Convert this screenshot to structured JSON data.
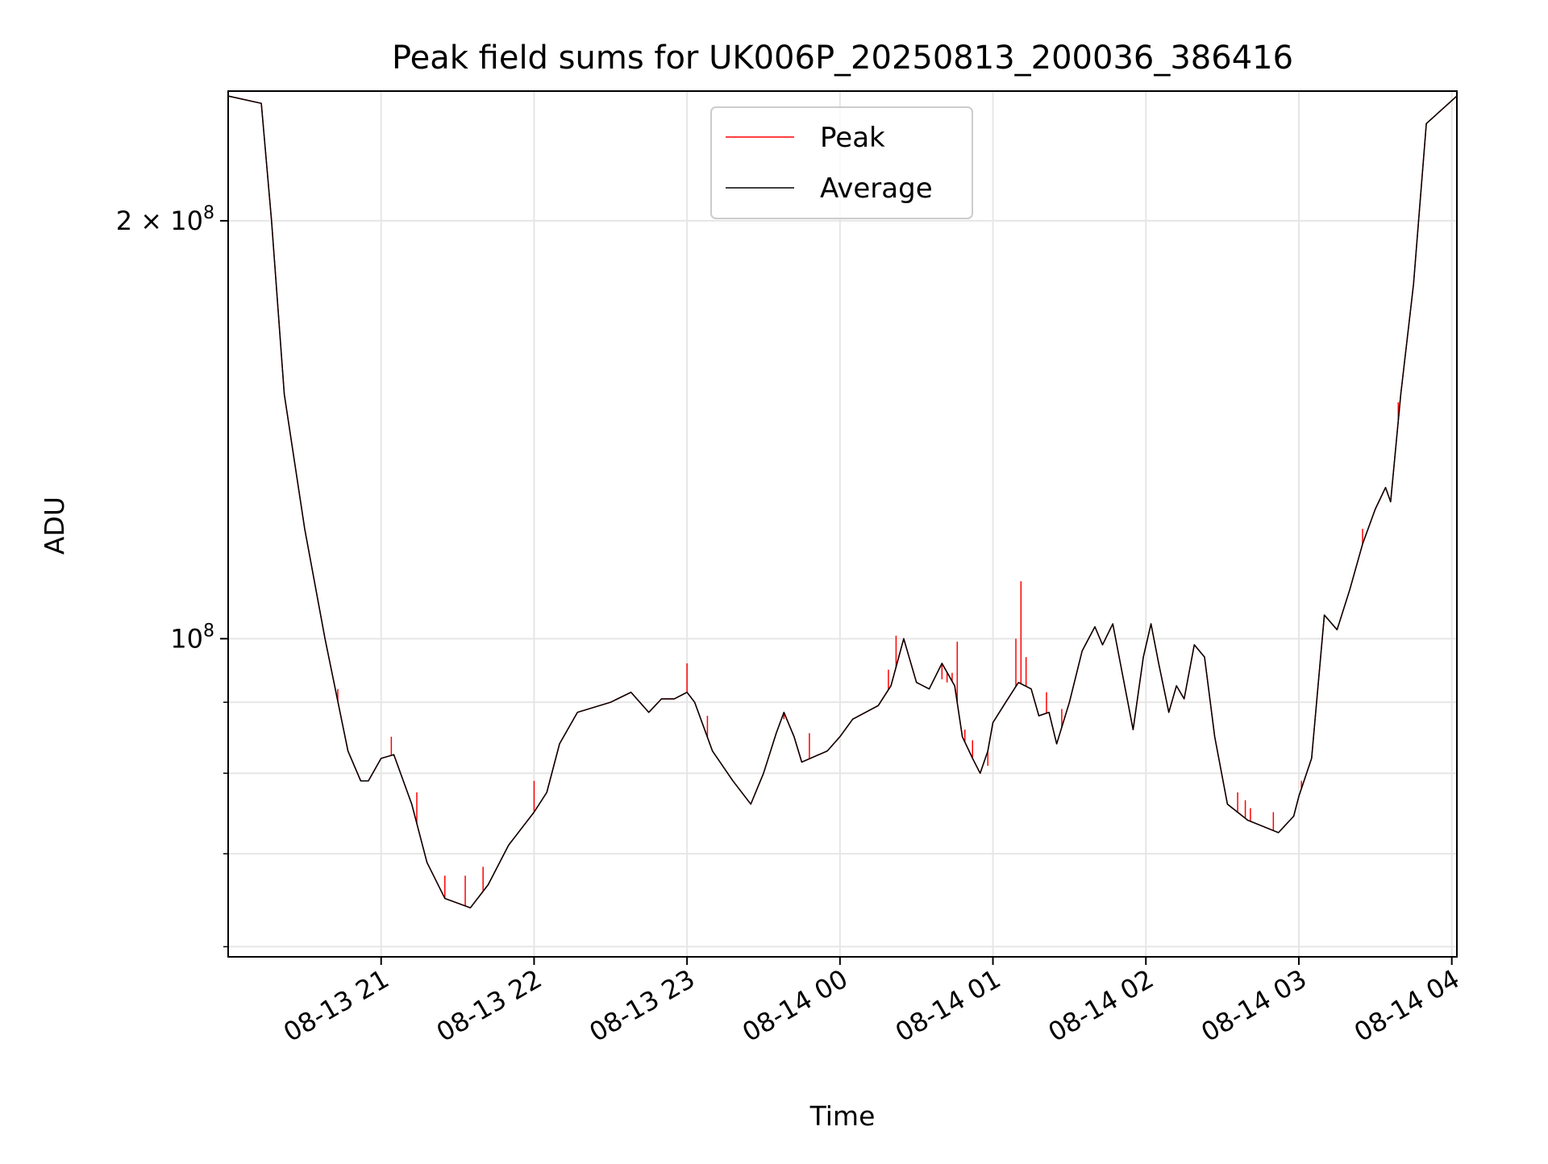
{
  "chart_data": {
    "type": "line",
    "title": "Peak field sums for UK006P_20250813_200036_386416",
    "xlabel": "Time",
    "ylabel": "ADU",
    "x_axis": {
      "kind": "datetime",
      "range": [
        "2025-08-13 20:00",
        "2025-08-14 04:02"
      ],
      "ticks": [
        {
          "value": "2025-08-13 21:00",
          "label": "08-13 21"
        },
        {
          "value": "2025-08-13 22:00",
          "label": "08-13 22"
        },
        {
          "value": "2025-08-13 23:00",
          "label": "08-13 23"
        },
        {
          "value": "2025-08-14 00:00",
          "label": "08-14 00"
        },
        {
          "value": "2025-08-14 01:00",
          "label": "08-14 01"
        },
        {
          "value": "2025-08-14 02:00",
          "label": "08-14 02"
        },
        {
          "value": "2025-08-14 03:00",
          "label": "08-14 03"
        },
        {
          "value": "2025-08-14 04:00",
          "label": "08-14 04"
        }
      ]
    },
    "y_axis": {
      "scale": "log",
      "range": [
        59000000,
        248000000
      ],
      "major_ticks": [
        {
          "value": 100000000,
          "label_base": "10",
          "label_exp": "8"
        },
        {
          "value": 200000000,
          "label_base": "2 × 10",
          "label_exp": "8"
        }
      ],
      "minor_ticks": [
        60000000,
        70000000,
        80000000,
        90000000
      ]
    },
    "grid": true,
    "legend": {
      "placement": "top-center"
    },
    "series": [
      {
        "name": "Peak",
        "color": "#ff0000",
        "points": [
          [
            "2025-08-13 20:00",
            246000000
          ],
          [
            "2025-08-13 20:13",
            243000000
          ],
          [
            "2025-08-13 20:17",
            200000000
          ],
          [
            "2025-08-13 20:22",
            150000000
          ],
          [
            "2025-08-13 20:30",
            120000000
          ],
          [
            "2025-08-13 20:38",
            100000000
          ],
          [
            "2025-08-13 20:47",
            83000000
          ],
          [
            "2025-08-13 20:52",
            79000000
          ],
          [
            "2025-08-13 20:55",
            79000000
          ],
          [
            "2025-08-13 21:00",
            82000000
          ],
          [
            "2025-08-13 21:05",
            82500000
          ],
          [
            "2025-08-13 21:12",
            76000000
          ],
          [
            "2025-08-13 21:18",
            69000000
          ],
          [
            "2025-08-13 21:25",
            65000000
          ],
          [
            "2025-08-13 21:35",
            64000000
          ],
          [
            "2025-08-13 21:42",
            66500000
          ],
          [
            "2025-08-13 21:50",
            71000000
          ],
          [
            "2025-08-13 22:00",
            75000000
          ],
          [
            "2025-08-13 22:05",
            77500000
          ],
          [
            "2025-08-13 22:10",
            84000000
          ],
          [
            "2025-08-13 22:17",
            88500000
          ],
          [
            "2025-08-13 22:30",
            90000000
          ],
          [
            "2025-08-13 22:38",
            91500000
          ],
          [
            "2025-08-13 22:45",
            88500000
          ],
          [
            "2025-08-13 22:50",
            90500000
          ],
          [
            "2025-08-13 22:55",
            90500000
          ],
          [
            "2025-08-13 23:00",
            91500000
          ],
          [
            "2025-08-13 23:03",
            90000000
          ],
          [
            "2025-08-13 23:10",
            83000000
          ],
          [
            "2025-08-13 23:18",
            79000000
          ],
          [
            "2025-08-13 23:25",
            76000000
          ],
          [
            "2025-08-13 23:30",
            80000000
          ],
          [
            "2025-08-13 23:35",
            85500000
          ],
          [
            "2025-08-13 23:38",
            88500000
          ],
          [
            "2025-08-13 23:42",
            85000000
          ],
          [
            "2025-08-13 23:45",
            81500000
          ],
          [
            "2025-08-13 23:55",
            83000000
          ],
          [
            "2025-08-14 00:00",
            85000000
          ],
          [
            "2025-08-14 00:05",
            87500000
          ],
          [
            "2025-08-14 00:15",
            89500000
          ],
          [
            "2025-08-14 00:20",
            92500000
          ],
          [
            "2025-08-14 00:25",
            100000000
          ],
          [
            "2025-08-14 00:30",
            93000000
          ],
          [
            "2025-08-14 00:35",
            92000000
          ],
          [
            "2025-08-14 00:40",
            96000000
          ],
          [
            "2025-08-14 00:45",
            92500000
          ],
          [
            "2025-08-14 00:48",
            85000000
          ],
          [
            "2025-08-14 00:52",
            82000000
          ],
          [
            "2025-08-14 00:55",
            80000000
          ],
          [
            "2025-08-14 00:58",
            83000000
          ],
          [
            "2025-08-14 01:00",
            87000000
          ],
          [
            "2025-08-14 01:05",
            90000000
          ],
          [
            "2025-08-14 01:10",
            93000000
          ],
          [
            "2025-08-14 01:15",
            92000000
          ],
          [
            "2025-08-14 01:18",
            88000000
          ],
          [
            "2025-08-14 01:22",
            88500000
          ],
          [
            "2025-08-14 01:25",
            84000000
          ],
          [
            "2025-08-14 01:30",
            90000000
          ],
          [
            "2025-08-14 01:35",
            98000000
          ],
          [
            "2025-08-14 01:40",
            102000000
          ],
          [
            "2025-08-14 01:43",
            99000000
          ],
          [
            "2025-08-14 01:47",
            102500000
          ],
          [
            "2025-08-14 01:50",
            96000000
          ],
          [
            "2025-08-14 01:55",
            86000000
          ],
          [
            "2025-08-14 01:59",
            97000000
          ],
          [
            "2025-08-14 02:02",
            102500000
          ],
          [
            "2025-08-14 02:05",
            96000000
          ],
          [
            "2025-08-14 02:09",
            88500000
          ],
          [
            "2025-08-14 02:12",
            92500000
          ],
          [
            "2025-08-14 02:15",
            90500000
          ],
          [
            "2025-08-14 02:19",
            99000000
          ],
          [
            "2025-08-14 02:23",
            97000000
          ],
          [
            "2025-08-14 02:27",
            85000000
          ],
          [
            "2025-08-14 02:32",
            76000000
          ],
          [
            "2025-08-14 02:40",
            74000000
          ],
          [
            "2025-08-14 02:52",
            72500000
          ],
          [
            "2025-08-14 02:58",
            74500000
          ],
          [
            "2025-08-14 03:00",
            77000000
          ],
          [
            "2025-08-14 03:05",
            82000000
          ],
          [
            "2025-08-14 03:10",
            104000000
          ],
          [
            "2025-08-14 03:15",
            101500000
          ],
          [
            "2025-08-14 03:20",
            108500000
          ],
          [
            "2025-08-14 03:25",
            117000000
          ],
          [
            "2025-08-14 03:30",
            124000000
          ],
          [
            "2025-08-14 03:34",
            128500000
          ],
          [
            "2025-08-14 03:36",
            125500000
          ],
          [
            "2025-08-14 03:40",
            150000000
          ],
          [
            "2025-08-14 03:45",
            180000000
          ],
          [
            "2025-08-14 03:50",
            235000000
          ],
          [
            "2025-08-14 04:02",
            246000000
          ]
        ],
        "spikes": [
          [
            "2025-08-13 20:43",
            92000000
          ],
          [
            "2025-08-13 21:04",
            85000000
          ],
          [
            "2025-08-13 21:14",
            77500000
          ],
          [
            "2025-08-13 21:25",
            67500000
          ],
          [
            "2025-08-13 21:33",
            67500000
          ],
          [
            "2025-08-13 21:40",
            68500000
          ],
          [
            "2025-08-13 22:00",
            79000000
          ],
          [
            "2025-08-13 23:00",
            96000000
          ],
          [
            "2025-08-13 23:08",
            88000000
          ],
          [
            "2025-08-13 23:38",
            87500000
          ],
          [
            "2025-08-13 23:48",
            85500000
          ],
          [
            "2025-08-14 00:19",
            95000000
          ],
          [
            "2025-08-14 00:22",
            100500000
          ],
          [
            "2025-08-14 00:40",
            93500000
          ],
          [
            "2025-08-14 00:42",
            93000000
          ],
          [
            "2025-08-14 00:44",
            94500000
          ],
          [
            "2025-08-14 00:46",
            99500000
          ],
          [
            "2025-08-14 00:49",
            86000000
          ],
          [
            "2025-08-14 00:52",
            84500000
          ],
          [
            "2025-08-14 00:58",
            81000000
          ],
          [
            "2025-08-14 01:09",
            100000000
          ],
          [
            "2025-08-14 01:11",
            110000000
          ],
          [
            "2025-08-14 01:13",
            97000000
          ],
          [
            "2025-08-14 01:21",
            91500000
          ],
          [
            "2025-08-14 01:27",
            89000000
          ],
          [
            "2025-08-14 02:36",
            77500000
          ],
          [
            "2025-08-14 02:39",
            76500000
          ],
          [
            "2025-08-14 02:41",
            75500000
          ],
          [
            "2025-08-14 02:50",
            75000000
          ],
          [
            "2025-08-14 03:01",
            79000000
          ],
          [
            "2025-08-14 03:25",
            120000000
          ],
          [
            "2025-08-14 03:39",
            148000000
          ]
        ]
      },
      {
        "name": "Average",
        "color": "#000000",
        "points": [
          [
            "2025-08-13 20:00",
            246000000
          ],
          [
            "2025-08-13 20:13",
            243000000
          ],
          [
            "2025-08-13 20:17",
            200000000
          ],
          [
            "2025-08-13 20:22",
            150000000
          ],
          [
            "2025-08-13 20:30",
            120000000
          ],
          [
            "2025-08-13 20:38",
            100000000
          ],
          [
            "2025-08-13 20:47",
            83000000
          ],
          [
            "2025-08-13 20:52",
            79000000
          ],
          [
            "2025-08-13 20:55",
            79000000
          ],
          [
            "2025-08-13 21:00",
            82000000
          ],
          [
            "2025-08-13 21:05",
            82500000
          ],
          [
            "2025-08-13 21:12",
            76000000
          ],
          [
            "2025-08-13 21:18",
            69000000
          ],
          [
            "2025-08-13 21:25",
            65000000
          ],
          [
            "2025-08-13 21:35",
            64000000
          ],
          [
            "2025-08-13 21:42",
            66500000
          ],
          [
            "2025-08-13 21:50",
            71000000
          ],
          [
            "2025-08-13 22:00",
            75000000
          ],
          [
            "2025-08-13 22:05",
            77500000
          ],
          [
            "2025-08-13 22:10",
            84000000
          ],
          [
            "2025-08-13 22:17",
            88500000
          ],
          [
            "2025-08-13 22:30",
            90000000
          ],
          [
            "2025-08-13 22:38",
            91500000
          ],
          [
            "2025-08-13 22:45",
            88500000
          ],
          [
            "2025-08-13 22:50",
            90500000
          ],
          [
            "2025-08-13 22:55",
            90500000
          ],
          [
            "2025-08-13 23:00",
            91500000
          ],
          [
            "2025-08-13 23:03",
            90000000
          ],
          [
            "2025-08-13 23:10",
            83000000
          ],
          [
            "2025-08-13 23:18",
            79000000
          ],
          [
            "2025-08-13 23:25",
            76000000
          ],
          [
            "2025-08-13 23:30",
            80000000
          ],
          [
            "2025-08-13 23:35",
            85500000
          ],
          [
            "2025-08-13 23:38",
            88500000
          ],
          [
            "2025-08-13 23:42",
            85000000
          ],
          [
            "2025-08-13 23:45",
            81500000
          ],
          [
            "2025-08-13 23:55",
            83000000
          ],
          [
            "2025-08-14 00:00",
            85000000
          ],
          [
            "2025-08-14 00:05",
            87500000
          ],
          [
            "2025-08-14 00:15",
            89500000
          ],
          [
            "2025-08-14 00:20",
            92500000
          ],
          [
            "2025-08-14 00:25",
            100000000
          ],
          [
            "2025-08-14 00:30",
            93000000
          ],
          [
            "2025-08-14 00:35",
            92000000
          ],
          [
            "2025-08-14 00:40",
            96000000
          ],
          [
            "2025-08-14 00:45",
            92500000
          ],
          [
            "2025-08-14 00:48",
            85000000
          ],
          [
            "2025-08-14 00:52",
            82000000
          ],
          [
            "2025-08-14 00:55",
            80000000
          ],
          [
            "2025-08-14 00:58",
            83000000
          ],
          [
            "2025-08-14 01:00",
            87000000
          ],
          [
            "2025-08-14 01:05",
            90000000
          ],
          [
            "2025-08-14 01:10",
            93000000
          ],
          [
            "2025-08-14 01:15",
            92000000
          ],
          [
            "2025-08-14 01:18",
            88000000
          ],
          [
            "2025-08-14 01:22",
            88500000
          ],
          [
            "2025-08-14 01:25",
            84000000
          ],
          [
            "2025-08-14 01:30",
            90000000
          ],
          [
            "2025-08-14 01:35",
            98000000
          ],
          [
            "2025-08-14 01:40",
            102000000
          ],
          [
            "2025-08-14 01:43",
            99000000
          ],
          [
            "2025-08-14 01:47",
            102500000
          ],
          [
            "2025-08-14 01:50",
            96000000
          ],
          [
            "2025-08-14 01:55",
            86000000
          ],
          [
            "2025-08-14 01:59",
            97000000
          ],
          [
            "2025-08-14 02:02",
            102500000
          ],
          [
            "2025-08-14 02:05",
            96000000
          ],
          [
            "2025-08-14 02:09",
            88500000
          ],
          [
            "2025-08-14 02:12",
            92500000
          ],
          [
            "2025-08-14 02:15",
            90500000
          ],
          [
            "2025-08-14 02:19",
            99000000
          ],
          [
            "2025-08-14 02:23",
            97000000
          ],
          [
            "2025-08-14 02:27",
            85000000
          ],
          [
            "2025-08-14 02:32",
            76000000
          ],
          [
            "2025-08-14 02:40",
            74000000
          ],
          [
            "2025-08-14 02:52",
            72500000
          ],
          [
            "2025-08-14 02:58",
            74500000
          ],
          [
            "2025-08-14 03:00",
            77000000
          ],
          [
            "2025-08-14 03:05",
            82000000
          ],
          [
            "2025-08-14 03:10",
            104000000
          ],
          [
            "2025-08-14 03:15",
            101500000
          ],
          [
            "2025-08-14 03:20",
            108500000
          ],
          [
            "2025-08-14 03:25",
            117000000
          ],
          [
            "2025-08-14 03:30",
            124000000
          ],
          [
            "2025-08-14 03:34",
            128500000
          ],
          [
            "2025-08-14 03:36",
            125500000
          ],
          [
            "2025-08-14 03:40",
            150000000
          ],
          [
            "2025-08-14 03:45",
            180000000
          ],
          [
            "2025-08-14 03:50",
            235000000
          ],
          [
            "2025-08-14 04:02",
            246000000
          ]
        ]
      }
    ]
  }
}
